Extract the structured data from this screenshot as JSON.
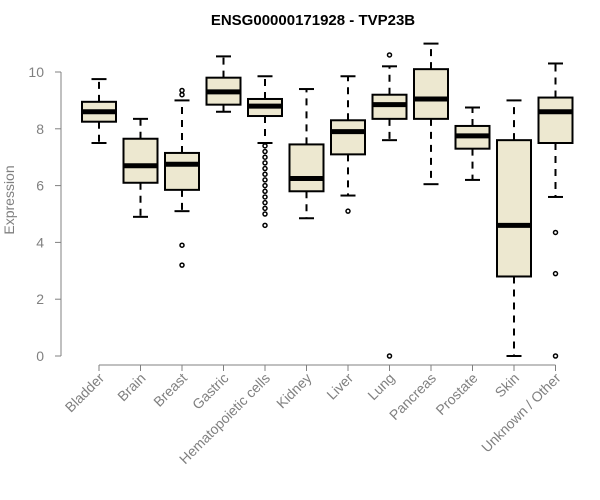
{
  "chart_data": {
    "type": "boxplot",
    "title": "ENSG00000171928 - TVP23B",
    "xlabel": "",
    "ylabel": "Expression",
    "ylim": [
      0,
      10
    ],
    "y_ticks": [
      0,
      2,
      4,
      6,
      8,
      10
    ],
    "categories": [
      "Bladder",
      "Brain",
      "Breast",
      "Gastric",
      "Hematopoietic cells",
      "Kidney",
      "Liver",
      "Lung",
      "Pancreas",
      "Prostate",
      "Skin",
      "Unknown / Other"
    ],
    "boxes": [
      {
        "name": "Bladder",
        "whisker_low": 7.5,
        "q1": 8.25,
        "median": 8.6,
        "q3": 8.95,
        "whisker_high": 9.75,
        "outliers": []
      },
      {
        "name": "Brain",
        "whisker_low": 4.9,
        "q1": 6.1,
        "median": 6.7,
        "q3": 7.65,
        "whisker_high": 8.35,
        "outliers": []
      },
      {
        "name": "Breast",
        "whisker_low": 5.1,
        "q1": 5.85,
        "median": 6.75,
        "q3": 7.15,
        "whisker_high": 9.0,
        "outliers": [
          9.2,
          9.35,
          3.9,
          3.2
        ]
      },
      {
        "name": "Gastric",
        "whisker_low": 8.6,
        "q1": 8.85,
        "median": 9.3,
        "q3": 9.8,
        "whisker_high": 10.55,
        "outliers": []
      },
      {
        "name": "Hematopoietic cells",
        "whisker_low": 7.5,
        "q1": 8.45,
        "median": 8.8,
        "q3": 9.05,
        "whisker_high": 9.85,
        "outliers": [
          7.4,
          7.2,
          7.0,
          6.8,
          6.6,
          6.4,
          6.2,
          6.0,
          5.8,
          5.6,
          5.4,
          5.2,
          5.0,
          4.6
        ]
      },
      {
        "name": "Kidney",
        "whisker_low": 4.85,
        "q1": 5.8,
        "median": 6.25,
        "q3": 7.45,
        "whisker_high": 9.4,
        "outliers": []
      },
      {
        "name": "Liver",
        "whisker_low": 5.65,
        "q1": 7.1,
        "median": 7.9,
        "q3": 8.3,
        "whisker_high": 9.85,
        "outliers": [
          5.1
        ]
      },
      {
        "name": "Lung",
        "whisker_low": 7.6,
        "q1": 8.35,
        "median": 8.85,
        "q3": 9.2,
        "whisker_high": 10.2,
        "outliers": [
          10.6,
          0.0
        ]
      },
      {
        "name": "Pancreas",
        "whisker_low": 6.05,
        "q1": 8.35,
        "median": 9.05,
        "q3": 10.1,
        "whisker_high": 11.0,
        "outliers": []
      },
      {
        "name": "Prostate",
        "whisker_low": 6.2,
        "q1": 7.3,
        "median": 7.75,
        "q3": 8.1,
        "whisker_high": 8.75,
        "outliers": []
      },
      {
        "name": "Skin",
        "whisker_low": 0.0,
        "q1": 2.8,
        "median": 4.6,
        "q3": 7.6,
        "whisker_high": 9.0,
        "outliers": []
      },
      {
        "name": "Unknown / Other",
        "whisker_low": 5.6,
        "q1": 7.5,
        "median": 8.6,
        "q3": 9.1,
        "whisker_high": 10.3,
        "outliers": [
          4.35,
          2.9,
          0.0
        ]
      }
    ],
    "colors": {
      "box_fill": "#ede8d0",
      "stroke": "#000000",
      "axis": "#808080",
      "text": "#808080",
      "title": "#000000"
    }
  }
}
